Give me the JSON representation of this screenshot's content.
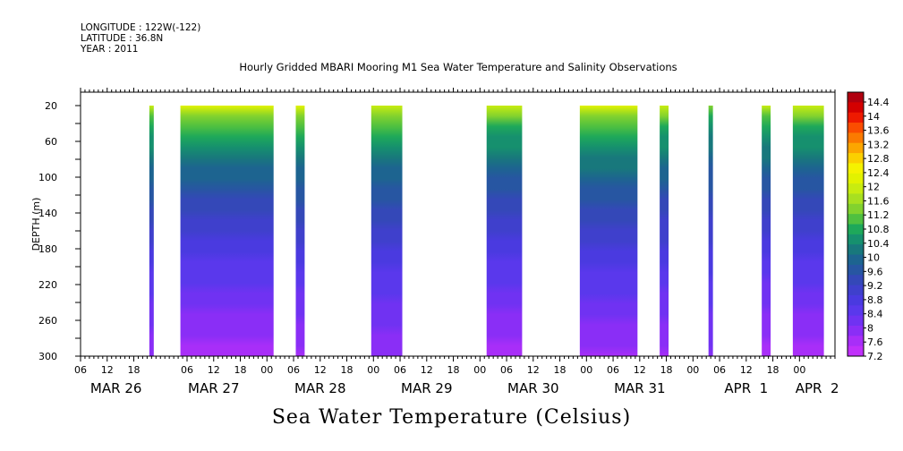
{
  "header": {
    "longitude": "LONGITUDE : 122W(-122)",
    "latitude": "LATITUDE : 36.8N",
    "year": "YEAR : 2011"
  },
  "chart_data": {
    "type": "heatmap",
    "title": "Hourly Gridded MBARI Mooring M1 Sea Water Temperature and Salinity Observations",
    "variable_label": "Sea Water Temperature (Celsius)",
    "ylabel": "DEPTH (m)",
    "y_inverted": true,
    "ylim": [
      5,
      300
    ],
    "y_ticks": [
      20,
      60,
      100,
      140,
      180,
      220,
      260,
      300
    ],
    "xlim_hours": [
      0,
      170
    ],
    "x_hour_ticks": [
      {
        "h": 0,
        "label": "06"
      },
      {
        "h": 6,
        "label": "12"
      },
      {
        "h": 12,
        "label": "18"
      },
      {
        "h": 24,
        "label": "06"
      },
      {
        "h": 30,
        "label": "12"
      },
      {
        "h": 36,
        "label": "18"
      },
      {
        "h": 42,
        "label": "00"
      },
      {
        "h": 48,
        "label": "06"
      },
      {
        "h": 54,
        "label": "12"
      },
      {
        "h": 60,
        "label": "18"
      },
      {
        "h": 66,
        "label": "00"
      },
      {
        "h": 72,
        "label": "06"
      },
      {
        "h": 78,
        "label": "12"
      },
      {
        "h": 84,
        "label": "18"
      },
      {
        "h": 90,
        "label": "00"
      },
      {
        "h": 96,
        "label": "06"
      },
      {
        "h": 102,
        "label": "12"
      },
      {
        "h": 108,
        "label": "18"
      },
      {
        "h": 114,
        "label": "00"
      },
      {
        "h": 120,
        "label": "06"
      },
      {
        "h": 126,
        "label": "12"
      },
      {
        "h": 132,
        "label": "18"
      },
      {
        "h": 138,
        "label": "00"
      },
      {
        "h": 144,
        "label": "06"
      },
      {
        "h": 150,
        "label": "12"
      },
      {
        "h": 156,
        "label": "18"
      },
      {
        "h": 162,
        "label": "00"
      }
    ],
    "x_day_labels": [
      {
        "h": 8,
        "label": "MAR 26"
      },
      {
        "h": 30,
        "label": "MAR 27"
      },
      {
        "h": 54,
        "label": "MAR 28"
      },
      {
        "h": 78,
        "label": "MAR 29"
      },
      {
        "h": 102,
        "label": "MAR 30"
      },
      {
        "h": 126,
        "label": "MAR 31"
      },
      {
        "h": 150,
        "label": "APR  1"
      },
      {
        "h": 166,
        "label": "APR  2"
      }
    ],
    "data_segments": [
      {
        "start_h": 15.5,
        "end_h": 16.5,
        "surface_temp": 11.8,
        "bottom_temp": 7.6
      },
      {
        "start_h": 22.5,
        "end_h": 43.5,
        "surface_temp": 12.0,
        "bottom_temp": 7.4
      },
      {
        "start_h": 48.5,
        "end_h": 50.5,
        "surface_temp": 12.0,
        "bottom_temp": 7.5
      },
      {
        "start_h": 65.5,
        "end_h": 72.5,
        "surface_temp": 11.9,
        "bottom_temp": 7.6
      },
      {
        "start_h": 91.5,
        "end_h": 99.5,
        "surface_temp": 11.9,
        "bottom_temp": 7.4
      },
      {
        "start_h": 112.5,
        "end_h": 125.5,
        "surface_temp": 12.1,
        "bottom_temp": 7.5
      },
      {
        "start_h": 130.5,
        "end_h": 132.5,
        "surface_temp": 11.9,
        "bottom_temp": 7.5
      },
      {
        "start_h": 141.5,
        "end_h": 142.5,
        "surface_temp": 11.2,
        "bottom_temp": 7.8
      },
      {
        "start_h": 153.5,
        "end_h": 155.5,
        "surface_temp": 11.8,
        "bottom_temp": 7.4
      },
      {
        "start_h": 160.5,
        "end_h": 167.5,
        "surface_temp": 11.9,
        "bottom_temp": 7.4
      }
    ],
    "colorbar": {
      "labels": [
        "14.4",
        "14",
        "13.6",
        "13.2",
        "12.8",
        "12.4",
        "12",
        "11.6",
        "11.2",
        "10.8",
        "10.4",
        "10",
        "9.6",
        "9.2",
        "8.8",
        "8.4",
        "8",
        "7.6",
        "7.2"
      ],
      "colors": [
        "#b0000f",
        "#d40000",
        "#ee1a00",
        "#fa4d00",
        "#fb7a00",
        "#fca600",
        "#fbd000",
        "#f5f200",
        "#e2f200",
        "#c8ec10",
        "#a8e020",
        "#82d22e",
        "#4fc040",
        "#1ea85a",
        "#16906e",
        "#18787c",
        "#1d6490",
        "#2756a2",
        "#3448b8",
        "#3f40cc",
        "#4a3ae0",
        "#5a38ec",
        "#7032f2",
        "#8a2ef6",
        "#a82ef8",
        "#c030fa"
      ]
    }
  }
}
